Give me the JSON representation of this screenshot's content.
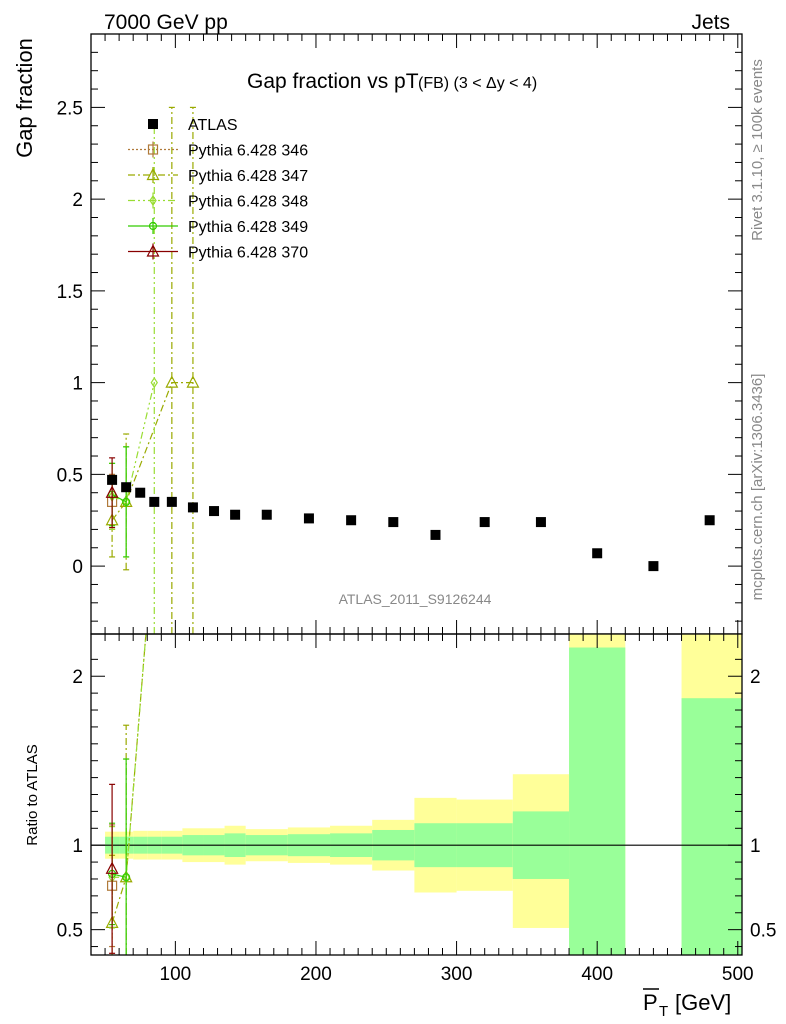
{
  "header": {
    "left": "7000 GeV pp",
    "right": "Jets"
  },
  "side_labels": {
    "rivet": "Rivet 3.1.10, ≥ 100k events",
    "mcplots": "mcplots.cern.ch [arXiv:1306.3436]"
  },
  "main_title": "Gap fraction vs pT",
  "main_title_sub": "(FB) (3 < Δy < 4)",
  "analysis_label": "ATLAS_2011_S9126244",
  "colors": {
    "ratio_inner": "#99ff99",
    "ratio_outer": "#ffff99",
    "p346": "#b07a3a",
    "p347": "#9aaa00",
    "p348": "#99dd33",
    "p349": "#33cc00",
    "p370": "#880000"
  },
  "chart_data": [
    {
      "type": "scatter",
      "panel": "main",
      "ylabel": "Gap fraction",
      "xlim": [
        40,
        503
      ],
      "ylim": [
        -0.37,
        2.9
      ],
      "y_ticks": [
        0,
        0.5,
        1,
        1.5,
        2,
        2.5
      ],
      "y_tick_labels": [
        "0",
        "0.5",
        "1",
        "1.5",
        "2",
        "2.5"
      ],
      "legend_position": "top-left",
      "legend": [
        {
          "name": "ATLAS",
          "marker": "square-filled",
          "color": "#000000"
        },
        {
          "name": "Pythia 6.428 346",
          "marker": "square-open",
          "color": "#b07a3a"
        },
        {
          "name": "Pythia 6.428 347",
          "marker": "triangle-open",
          "color": "#9aaa00"
        },
        {
          "name": "Pythia 6.428 348",
          "marker": "diamond-open",
          "color": "#99dd33"
        },
        {
          "name": "Pythia 6.428 349",
          "marker": "circle-open",
          "color": "#33cc00"
        },
        {
          "name": "Pythia 6.428 370",
          "marker": "triangle-open",
          "color": "#880000"
        }
      ],
      "series": [
        {
          "name": "ATLAS",
          "x": [
            55,
            65,
            75,
            85,
            97.5,
            112.5,
            127.5,
            142.5,
            165,
            195,
            225,
            255,
            285,
            320,
            360,
            400,
            440,
            480
          ],
          "y": [
            0.47,
            0.43,
            0.4,
            0.35,
            0.35,
            0.32,
            0.3,
            0.28,
            0.28,
            0.26,
            0.25,
            0.24,
            0.17,
            0.24,
            0.24,
            0.07,
            0.0,
            0.25
          ]
        },
        {
          "name": "Pythia 6.428 346",
          "x": [
            55
          ],
          "y": [
            0.35
          ],
          "err": [
            0.15
          ]
        },
        {
          "name": "Pythia 6.428 347",
          "x": [
            55,
            65,
            97.5,
            112.5
          ],
          "y": [
            0.25,
            0.35,
            1.0,
            1.0
          ],
          "err": [
            0.2,
            0.37,
            1.5,
            1.5
          ]
        },
        {
          "name": "Pythia 6.428 348",
          "x": [
            55,
            65,
            85
          ],
          "y": [
            0.38,
            0.35,
            1.0
          ],
          "err": [
            0.18,
            0.3,
            1.4
          ]
        },
        {
          "name": "Pythia 6.428 349",
          "x": [
            55,
            65
          ],
          "y": [
            0.39,
            0.35
          ],
          "err": [
            0.17,
            0.3
          ]
        },
        {
          "name": "Pythia 6.428 370",
          "x": [
            55
          ],
          "y": [
            0.4
          ],
          "err": [
            0.19
          ]
        }
      ]
    },
    {
      "type": "area",
      "panel": "ratio",
      "ylabel": "Ratio to ATLAS",
      "xlabel_main": "P",
      "xlabel_sub": "T",
      "xlabel_unit": "[GeV]",
      "xlim": [
        40,
        503
      ],
      "ylim": [
        0.35,
        2.25
      ],
      "x_ticks": [
        100,
        200,
        300,
        400,
        500
      ],
      "x_tick_labels": [
        "100",
        "200",
        "300",
        "400",
        "500"
      ],
      "y_ticks": [
        0.5,
        1,
        2
      ],
      "y_tick_labels": [
        "0.5",
        "1",
        "2"
      ],
      "bands": [
        {
          "x0": 50,
          "x1": 60,
          "in": [
            0.95,
            1.05
          ],
          "out": [
            0.92,
            1.08
          ]
        },
        {
          "x0": 60,
          "x1": 70,
          "in": [
            0.95,
            1.05
          ],
          "out": [
            0.92,
            1.08
          ]
        },
        {
          "x0": 70,
          "x1": 80,
          "in": [
            0.95,
            1.05
          ],
          "out": [
            0.915,
            1.085
          ]
        },
        {
          "x0": 80,
          "x1": 90,
          "in": [
            0.95,
            1.05
          ],
          "out": [
            0.915,
            1.085
          ]
        },
        {
          "x0": 90,
          "x1": 105,
          "in": [
            0.95,
            1.05
          ],
          "out": [
            0.915,
            1.085
          ]
        },
        {
          "x0": 105,
          "x1": 120,
          "in": [
            0.94,
            1.06
          ],
          "out": [
            0.9,
            1.1
          ]
        },
        {
          "x0": 120,
          "x1": 135,
          "in": [
            0.94,
            1.06
          ],
          "out": [
            0.9,
            1.1
          ]
        },
        {
          "x0": 135,
          "x1": 150,
          "in": [
            0.93,
            1.07
          ],
          "out": [
            0.885,
            1.115
          ]
        },
        {
          "x0": 150,
          "x1": 180,
          "in": [
            0.94,
            1.06
          ],
          "out": [
            0.905,
            1.095
          ]
        },
        {
          "x0": 180,
          "x1": 210,
          "in": [
            0.935,
            1.065
          ],
          "out": [
            0.895,
            1.105
          ]
        },
        {
          "x0": 210,
          "x1": 240,
          "in": [
            0.93,
            1.07
          ],
          "out": [
            0.885,
            1.115
          ]
        },
        {
          "x0": 240,
          "x1": 270,
          "in": [
            0.91,
            1.09
          ],
          "out": [
            0.85,
            1.15
          ]
        },
        {
          "x0": 270,
          "x1": 300,
          "in": [
            0.87,
            1.13
          ],
          "out": [
            0.72,
            1.28
          ]
        },
        {
          "x0": 300,
          "x1": 340,
          "in": [
            0.87,
            1.13
          ],
          "out": [
            0.73,
            1.27
          ]
        },
        {
          "x0": 340,
          "x1": 380,
          "in": [
            0.8,
            1.2
          ],
          "out": [
            0.51,
            1.42
          ]
        },
        {
          "x0": 380,
          "x1": 420,
          "in": [
            0.35,
            2.17
          ],
          "out": [
            0.35,
            2.25
          ]
        },
        {
          "x0": 460,
          "x1": 503,
          "in": [
            0.35,
            1.87
          ],
          "out": [
            0.35,
            2.25
          ]
        }
      ],
      "series": [
        {
          "name": "Pythia 6.428 346",
          "x": [
            55
          ],
          "y": [
            0.76
          ],
          "err": [
            0.36
          ]
        },
        {
          "name": "Pythia 6.428 347",
          "x": [
            55,
            65,
            85
          ],
          "y": [
            0.54,
            0.81,
            2.86
          ],
          "err": [
            0.4,
            0.9,
            0
          ]
        },
        {
          "name": "Pythia 6.428 348",
          "x": [
            55,
            65,
            85
          ],
          "y": [
            0.81,
            0.81,
            2.86
          ],
          "err": [
            0.3,
            0.7,
            0
          ]
        },
        {
          "name": "Pythia 6.428 349",
          "x": [
            55,
            65
          ],
          "y": [
            0.83,
            0.81
          ],
          "err": [
            0.3,
            0.7
          ]
        },
        {
          "name": "Pythia 6.428 370",
          "x": [
            55
          ],
          "y": [
            0.86
          ],
          "err": [
            0.5
          ]
        }
      ]
    }
  ]
}
